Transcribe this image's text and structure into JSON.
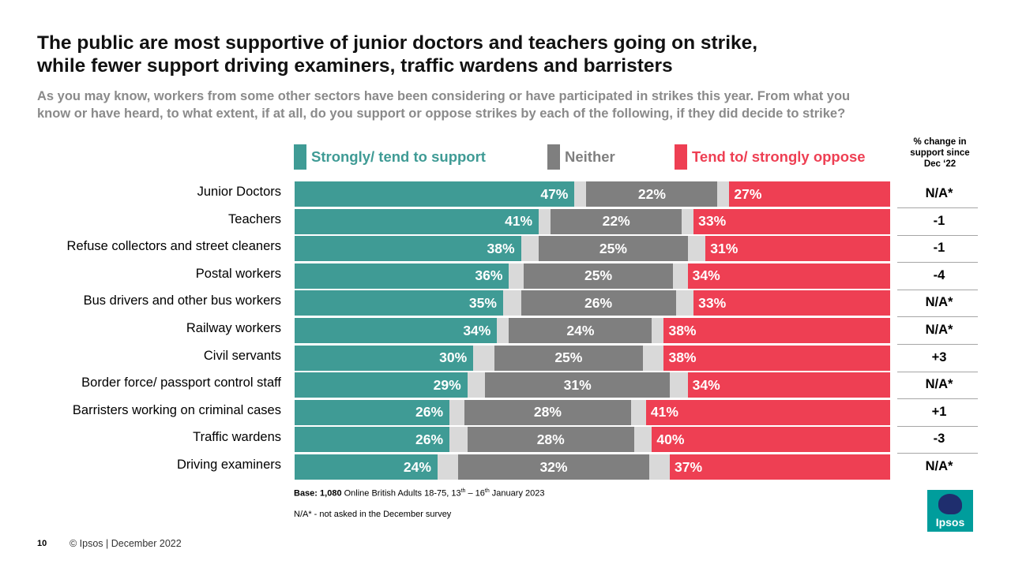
{
  "title": {
    "line1": "The public are most supportive of junior doctors and teachers going on strike,",
    "line2": "while fewer support driving examiners, traffic wardens and barristers"
  },
  "subtitle": {
    "line1": "As you may know, workers from some other sectors have been considering or have participated in strikes this year.  From what you",
    "line2": "know or have heard, to what extent, if at all,  do you support or oppose strikes by each of the following, if they did decide to strike?"
  },
  "legend": {
    "support": "Strongly/ tend to support",
    "neither": "Neither",
    "oppose": "Tend to/ strongly oppose"
  },
  "change_header": {
    "line1": "% change in",
    "line2": "support since",
    "line3": "Dec ‘22"
  },
  "colors": {
    "support": "#3f9b95",
    "neither": "#7f7f7f",
    "oppose": "#ee3f53",
    "gap": "#d9d9d9"
  },
  "chart_data": {
    "type": "bar",
    "orientation": "horizontal-stacked-100",
    "title": "The public are most supportive of junior doctors and teachers going on strike, while fewer support driving examiners, traffic wardens and barristers",
    "categories": [
      "Junior Doctors",
      "Teachers",
      "Refuse collectors and street cleaners",
      "Postal workers",
      "Bus drivers and other bus workers",
      "Railway workers",
      "Civil servants",
      "Border force/ passport control staff",
      "Barristers working on criminal cases",
      "Traffic wardens",
      "Driving examiners"
    ],
    "series": [
      {
        "name": "Strongly/ tend to support",
        "values": [
          47,
          41,
          38,
          36,
          35,
          34,
          30,
          29,
          26,
          26,
          24
        ]
      },
      {
        "name": "Neither",
        "values": [
          22,
          22,
          25,
          25,
          26,
          24,
          25,
          31,
          28,
          28,
          32
        ]
      },
      {
        "name": "Tend to/ strongly oppose",
        "values": [
          27,
          33,
          31,
          34,
          33,
          38,
          38,
          34,
          41,
          40,
          37
        ]
      }
    ],
    "change_since_dec_22": [
      "N/A*",
      "-1",
      "-1",
      "-4",
      "N/A*",
      "N/A*",
      "+3",
      "N/A*",
      "+1",
      "-3",
      "N/A*"
    ],
    "value_suffix": "%",
    "xlim": [
      0,
      100
    ]
  },
  "footnotes": {
    "base_label": "Base: ",
    "base_n": "1,080",
    "base_text_a": " Online British Adults 18-75, 13",
    "base_sup1": "th",
    "base_text_b": " – 16",
    "base_sup2": "th",
    "base_text_c": " January 2023",
    "na_note": "N/A* - not asked in the December survey"
  },
  "footer": {
    "page_number": "10",
    "copyright": "© Ipsos | December 2022"
  },
  "logo": {
    "text": "Ipsos"
  }
}
